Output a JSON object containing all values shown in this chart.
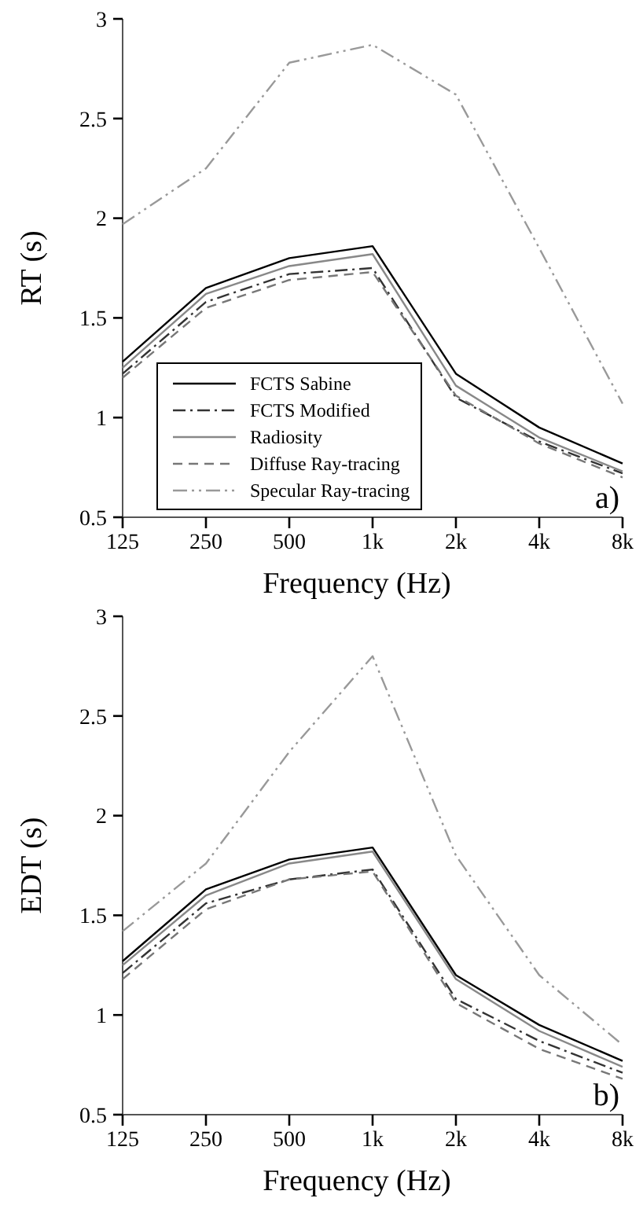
{
  "chart_data": [
    {
      "type": "line",
      "xlabel": "Frequency (Hz)",
      "ylabel": "RT (s)",
      "categories": [
        "125",
        "250",
        "500",
        "1k",
        "2k",
        "4k",
        "8k"
      ],
      "ylim": [
        0.5,
        3
      ],
      "yticks": [
        0.5,
        1,
        1.5,
        2,
        2.5,
        3
      ],
      "legend": "bottom left",
      "grid": false,
      "annotations": [
        "a)"
      ],
      "series": [
        {
          "name": "FCTS Sabine",
          "color": "#000000",
          "line_style": "solid",
          "values": [
            1.28,
            1.65,
            1.8,
            1.86,
            1.22,
            0.95,
            0.77
          ]
        },
        {
          "name": "FCTS Modified",
          "color": "#333333",
          "line_style": "dashdot",
          "values": [
            1.22,
            1.58,
            1.72,
            1.75,
            1.1,
            0.88,
            0.72
          ]
        },
        {
          "name": "Radiosity",
          "color": "#888888",
          "line_style": "solid",
          "values": [
            1.25,
            1.62,
            1.76,
            1.82,
            1.16,
            0.9,
            0.73
          ]
        },
        {
          "name": "Diffuse Ray-tracing",
          "color": "#777777",
          "line_style": "dashed",
          "values": [
            1.2,
            1.55,
            1.69,
            1.73,
            1.11,
            0.87,
            0.7
          ]
        },
        {
          "name": "Specular Ray-tracing",
          "color": "#999999",
          "line_style": "dashdotdot",
          "values": [
            1.97,
            2.25,
            2.78,
            2.87,
            2.62,
            1.85,
            1.07
          ]
        }
      ]
    },
    {
      "type": "line",
      "xlabel": "Frequency (Hz)",
      "ylabel": "EDT (s)",
      "categories": [
        "125",
        "250",
        "500",
        "1k",
        "2k",
        "4k",
        "8k"
      ],
      "ylim": [
        0.5,
        3
      ],
      "yticks": [
        0.5,
        1,
        1.5,
        2,
        2.5,
        3
      ],
      "legend": false,
      "grid": false,
      "annotations": [
        "b)"
      ],
      "series": [
        {
          "color": "#000000",
          "line_style": "solid",
          "values": [
            1.27,
            1.63,
            1.78,
            1.84,
            1.2,
            0.95,
            0.77
          ]
        },
        {
          "color": "#333333",
          "line_style": "dashdot",
          "values": [
            1.21,
            1.56,
            1.68,
            1.73,
            1.08,
            0.87,
            0.71
          ]
        },
        {
          "color": "#888888",
          "line_style": "solid",
          "values": [
            1.25,
            1.6,
            1.76,
            1.82,
            1.18,
            0.92,
            0.74
          ]
        },
        {
          "color": "#777777",
          "line_style": "dashed",
          "values": [
            1.18,
            1.53,
            1.68,
            1.72,
            1.06,
            0.83,
            0.68
          ]
        },
        {
          "color": "#999999",
          "line_style": "dashdotdot",
          "values": [
            1.42,
            1.76,
            2.32,
            2.8,
            1.8,
            1.2,
            0.85
          ]
        }
      ]
    }
  ]
}
